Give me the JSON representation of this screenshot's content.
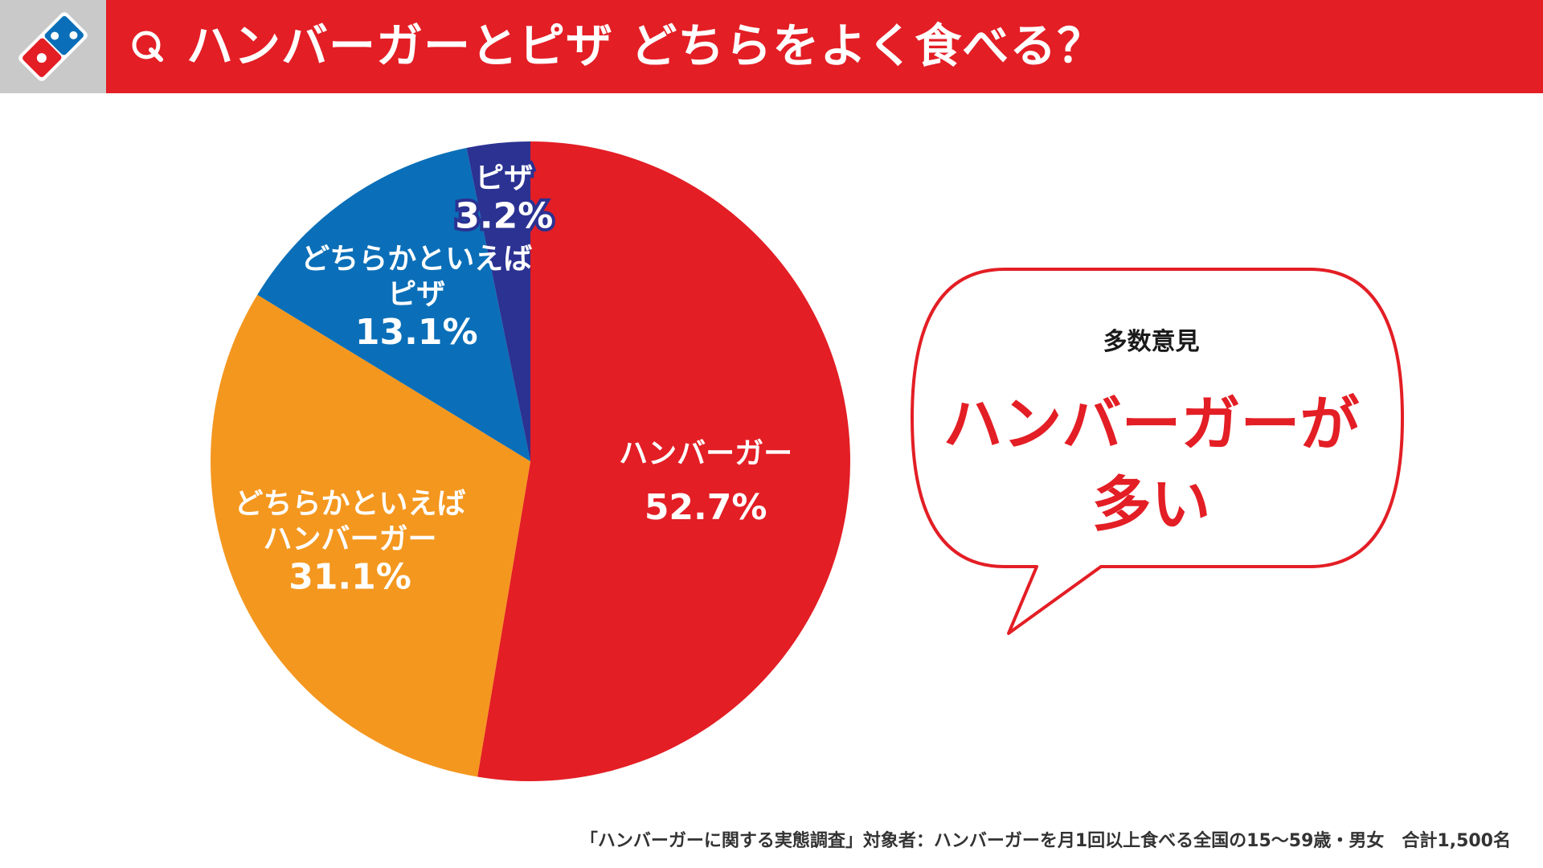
{
  "header": {
    "title": "ハンバーガーとピザ どちらをよく食べる？"
  },
  "colors": {
    "brand_red": "#e31e25",
    "orange": "#f4971f",
    "blue": "#0a6fb8",
    "navy": "#2b3292"
  },
  "chart_data": {
    "type": "pie",
    "slices": [
      {
        "label_lines": [
          "ハンバーガー"
        ],
        "value": 52.7,
        "display": "52.7%",
        "color": "#e31e25"
      },
      {
        "label_lines": [
          "どちらかといえば",
          "ハンバーガー"
        ],
        "value": 31.1,
        "display": "31.1%",
        "color": "#f4971f"
      },
      {
        "label_lines": [
          "どちらかといえば",
          "ピザ"
        ],
        "value": 13.1,
        "display": "13.1%",
        "color": "#0a6fb8"
      },
      {
        "label_lines": [
          "ピザ"
        ],
        "value": 3.2,
        "display": "3.2%",
        "color": "#2b3292"
      }
    ]
  },
  "callout": {
    "small": "多数意見",
    "big_line1": "ハンバーガーが",
    "big_line2": "多い"
  },
  "footnote": "「ハンバーガーに関する実態調査」対象者：ハンバーガーを月1回以上食べる全国の15～59歳・男女　合計1,500名"
}
